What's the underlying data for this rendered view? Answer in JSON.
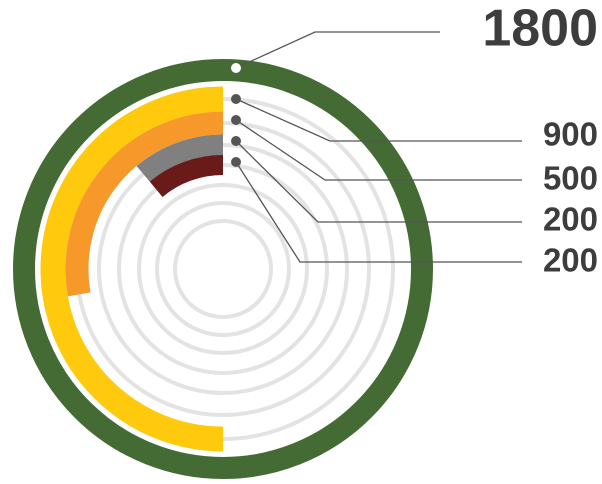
{
  "chart_data": {
    "type": "radial-bar",
    "series": [
      {
        "value": 1800,
        "color": "#456b35"
      },
      {
        "value": 900,
        "color": "#ffc90e"
      },
      {
        "value": 500,
        "color": "#f7982a"
      },
      {
        "value": 200,
        "color": "#808080"
      },
      {
        "value": 200,
        "color": "#6b1a1a"
      }
    ]
  }
}
